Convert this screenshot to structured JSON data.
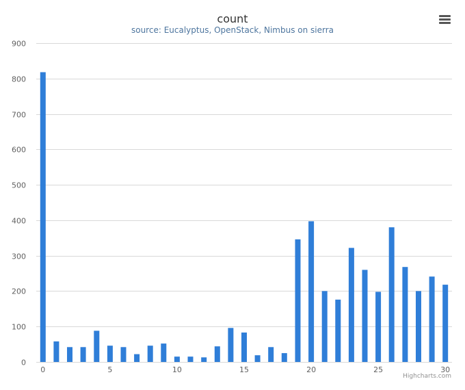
{
  "chart_data": {
    "type": "bar",
    "title": "count",
    "subtitle": "source: Eucalyptus, OpenStack, Nimbus on sierra",
    "x": [
      0,
      1,
      2,
      3,
      4,
      5,
      6,
      7,
      8,
      9,
      10,
      11,
      12,
      13,
      14,
      15,
      16,
      17,
      18,
      19,
      20,
      21,
      22,
      23,
      24,
      25,
      26,
      27,
      28,
      29,
      30
    ],
    "values": [
      818,
      58,
      42,
      42,
      88,
      46,
      42,
      22,
      46,
      52,
      15,
      15,
      13,
      44,
      96,
      83,
      19,
      42,
      25,
      346,
      397,
      200,
      176,
      322,
      260,
      198,
      380,
      268,
      200,
      241,
      218
    ],
    "xticks": [
      0,
      5,
      10,
      15,
      20,
      25,
      30
    ],
    "yticks": [
      0,
      100,
      200,
      300,
      400,
      500,
      600,
      700,
      800,
      900
    ],
    "ylim": [
      0,
      900
    ],
    "xlim": [
      -0.5,
      30.5
    ],
    "xlabel": "",
    "ylabel": "",
    "grid": true,
    "legend": "none",
    "bar_color": "#2f7ed8",
    "subtitle_color": "#4d759e"
  },
  "credits": "Highcharts.com",
  "menu_icon": "hamburger-menu-icon"
}
